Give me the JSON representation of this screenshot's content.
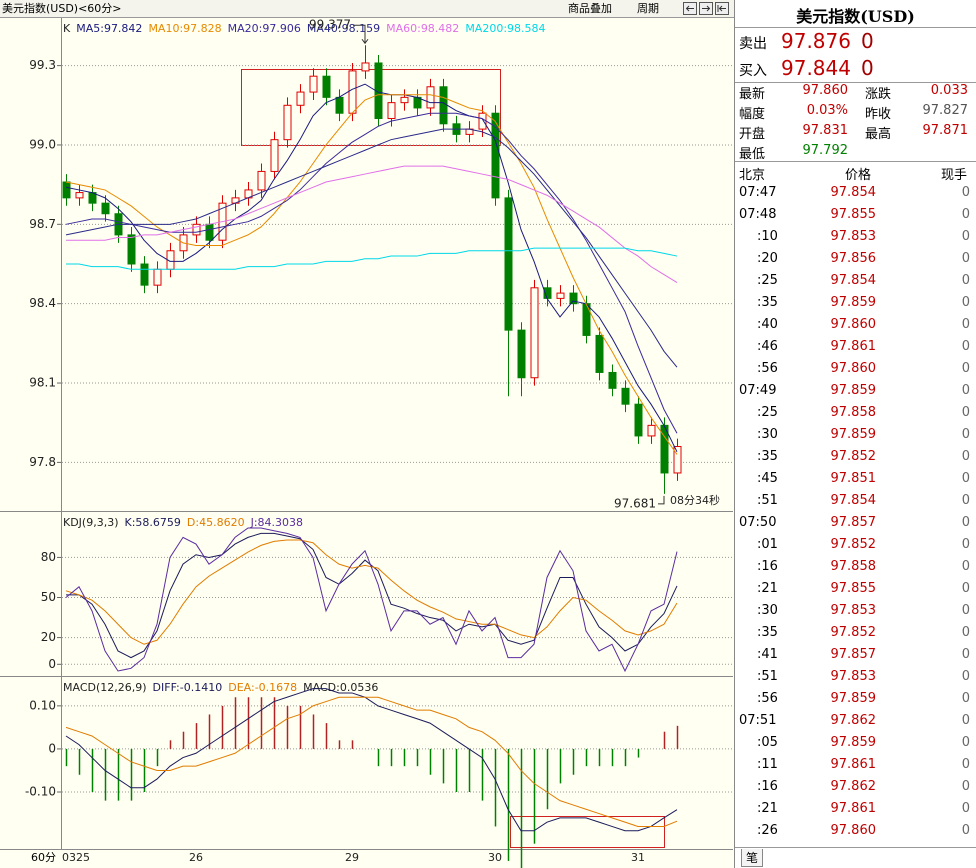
{
  "header": {
    "title": "美元指数(USD)<60分>",
    "overlay_button": "商品叠加",
    "period_button": "周期"
  },
  "period_label": "60分",
  "chart_data": [
    {
      "type": "candlestick",
      "label": "K",
      "categories": [
        "0325",
        null,
        null,
        null,
        null,
        null,
        null,
        null,
        null,
        null,
        "26",
        null,
        null,
        null,
        null,
        null,
        null,
        null,
        null,
        null,
        null,
        null,
        "29",
        null,
        null,
        null,
        null,
        null,
        null,
        null,
        null,
        null,
        null,
        "30",
        null,
        null,
        null,
        null,
        null,
        null,
        null,
        null,
        null,
        null,
        "31",
        null,
        null,
        null
      ],
      "open": [
        98.86,
        98.8,
        98.82,
        98.78,
        98.74,
        98.66,
        98.55,
        98.47,
        98.53,
        98.6,
        98.66,
        98.7,
        98.64,
        98.78,
        98.8,
        98.83,
        98.9,
        99.02,
        99.15,
        99.2,
        99.26,
        99.18,
        99.12,
        99.28,
        99.31,
        99.1,
        99.16,
        99.18,
        99.14,
        99.22,
        99.08,
        99.04,
        99.06,
        99.12,
        98.8,
        98.3,
        98.12,
        98.46,
        98.42,
        98.44,
        98.4,
        98.28,
        98.14,
        98.08,
        98.02,
        97.9,
        97.94,
        97.76
      ],
      "high": [
        98.89,
        98.85,
        98.85,
        98.81,
        98.77,
        98.69,
        98.58,
        98.56,
        98.63,
        98.69,
        98.73,
        98.73,
        98.81,
        98.83,
        98.86,
        98.93,
        99.05,
        99.18,
        99.23,
        99.29,
        99.29,
        99.21,
        99.31,
        99.377,
        99.34,
        99.19,
        99.21,
        99.21,
        99.25,
        99.25,
        99.11,
        99.09,
        99.15,
        99.15,
        98.83,
        98.33,
        98.49,
        98.49,
        98.47,
        98.47,
        98.43,
        98.31,
        98.17,
        98.11,
        98.05,
        97.97,
        97.97,
        97.89
      ],
      "low": [
        98.77,
        98.77,
        98.75,
        98.71,
        98.63,
        98.52,
        98.44,
        98.44,
        98.5,
        98.57,
        98.63,
        98.61,
        98.61,
        98.75,
        98.77,
        98.8,
        98.87,
        98.99,
        99.12,
        99.17,
        99.15,
        99.09,
        99.09,
        99.25,
        99.07,
        99.07,
        99.13,
        99.11,
        99.11,
        99.05,
        99.01,
        99.01,
        99.03,
        98.77,
        98.05,
        98.05,
        98.09,
        98.39,
        98.39,
        98.37,
        98.25,
        98.11,
        98.05,
        97.99,
        97.87,
        97.87,
        97.681,
        97.73
      ],
      "close": [
        98.8,
        98.82,
        98.78,
        98.74,
        98.66,
        98.55,
        98.47,
        98.53,
        98.6,
        98.66,
        98.7,
        98.64,
        98.78,
        98.8,
        98.83,
        98.9,
        99.02,
        99.15,
        99.2,
        99.26,
        99.18,
        99.12,
        99.28,
        99.31,
        99.1,
        99.16,
        99.18,
        99.14,
        99.22,
        99.08,
        99.04,
        99.06,
        99.12,
        98.8,
        98.3,
        98.12,
        98.46,
        98.42,
        98.44,
        98.4,
        98.28,
        98.14,
        98.08,
        98.02,
        97.9,
        97.94,
        97.76,
        97.86
      ],
      "up_color": "#e00000",
      "down_color": "#008000",
      "series": [
        {
          "name": "MA5:97.842",
          "color": "#1a1a80",
          "values": [
            98.84,
            98.83,
            98.82,
            98.8,
            98.76,
            98.71,
            98.64,
            98.59,
            98.56,
            98.56,
            98.59,
            98.63,
            98.68,
            98.72,
            98.75,
            98.79,
            98.87,
            98.94,
            99.02,
            99.11,
            99.16,
            99.18,
            99.21,
            99.23,
            99.2,
            99.19,
            99.19,
            99.18,
            99.16,
            99.16,
            99.13,
            99.11,
            99.1,
            99.02,
            98.86,
            98.68,
            98.56,
            98.42,
            98.35,
            98.41,
            98.4,
            98.35,
            98.27,
            98.18,
            98.09,
            98.02,
            97.94,
            97.84
          ]
        },
        {
          "name": "MA10:97.828",
          "color": "#e88a00",
          "values": [
            98.86,
            98.85,
            98.84,
            98.83,
            98.8,
            98.77,
            98.73,
            98.69,
            98.66,
            98.63,
            98.62,
            98.62,
            98.62,
            98.64,
            98.66,
            98.69,
            98.74,
            98.8,
            98.86,
            98.93,
            99.0,
            99.06,
            99.12,
            99.17,
            99.19,
            99.19,
            99.19,
            99.19,
            99.19,
            99.18,
            99.16,
            99.14,
            99.13,
            99.09,
            99.01,
            98.93,
            98.84,
            98.72,
            98.61,
            98.5,
            98.4,
            98.3,
            98.22,
            98.13,
            98.05,
            97.97,
            97.9,
            97.83
          ]
        },
        {
          "name": "MA20:97.906",
          "color": "#3a2a9a",
          "values": [
            98.7,
            98.71,
            98.72,
            98.72,
            98.71,
            98.7,
            98.69,
            98.68,
            98.67,
            98.67,
            98.67,
            98.68,
            98.69,
            98.7,
            98.71,
            98.73,
            98.76,
            98.79,
            98.83,
            98.88,
            98.93,
            98.97,
            99.01,
            99.04,
            99.07,
            99.09,
            99.1,
            99.11,
            99.12,
            99.12,
            99.12,
            99.11,
            99.1,
            99.07,
            99.02,
            98.96,
            98.91,
            98.85,
            98.79,
            98.72,
            98.64,
            98.55,
            98.46,
            98.37,
            98.24,
            98.12,
            98.0,
            97.91
          ]
        },
        {
          "name": "MA40:98.159",
          "color": "#2a2a8a",
          "values": [
            98.66,
            98.67,
            98.68,
            98.69,
            98.7,
            98.7,
            98.7,
            98.7,
            98.7,
            98.71,
            98.72,
            98.74,
            98.76,
            98.78,
            98.8,
            98.82,
            98.84,
            98.86,
            98.88,
            98.9,
            98.92,
            98.94,
            98.96,
            98.98,
            99.0,
            99.02,
            99.03,
            99.04,
            99.05,
            99.06,
            99.06,
            99.06,
            99.05,
            99.03,
            98.99,
            98.94,
            98.89,
            98.83,
            98.77,
            98.71,
            98.65,
            98.58,
            98.51,
            98.44,
            98.37,
            98.3,
            98.22,
            98.16
          ]
        },
        {
          "name": "MA60:98.482",
          "color": "#e070e8",
          "values": [
            98.64,
            98.64,
            98.64,
            98.64,
            98.65,
            98.65,
            98.66,
            98.66,
            98.67,
            98.68,
            98.69,
            98.7,
            98.71,
            98.72,
            98.74,
            98.76,
            98.78,
            98.8,
            98.82,
            98.84,
            98.86,
            98.87,
            98.88,
            98.89,
            98.9,
            98.91,
            98.92,
            98.92,
            98.92,
            98.92,
            98.91,
            98.9,
            98.89,
            98.88,
            98.87,
            98.85,
            98.83,
            98.81,
            98.78,
            98.75,
            98.72,
            98.69,
            98.65,
            98.61,
            98.58,
            98.54,
            98.51,
            98.48
          ]
        },
        {
          "name": "MA200:98.584",
          "color": "#00d8e8",
          "values": [
            98.55,
            98.55,
            98.54,
            98.54,
            98.54,
            98.53,
            98.53,
            98.53,
            98.53,
            98.53,
            98.53,
            98.53,
            98.53,
            98.53,
            98.54,
            98.54,
            98.54,
            98.55,
            98.55,
            98.55,
            98.56,
            98.56,
            98.56,
            98.57,
            98.57,
            98.58,
            98.58,
            98.58,
            98.59,
            98.59,
            98.59,
            98.6,
            98.6,
            98.6,
            98.6,
            98.6,
            98.61,
            98.61,
            98.61,
            98.61,
            98.61,
            98.61,
            98.61,
            98.61,
            98.6,
            98.6,
            98.59,
            98.58
          ]
        }
      ],
      "ylim": [
        97.62,
        99.48
      ],
      "yticks": [
        99.3,
        {
          "value": 99,
          "label": "99.0"
        },
        98.7,
        98.4,
        98.1,
        97.8
      ],
      "grid": true,
      "high_label": 99.377,
      "low_label": 97.681,
      "countdown": "08分34秒"
    },
    {
      "type": "line",
      "title": "KDJ(9,3,3)",
      "series": [
        {
          "name": "K:58.6759",
          "color": "#1c1c5c",
          "values": [
            52,
            52,
            45,
            30,
            10,
            5,
            10,
            25,
            55,
            75,
            82,
            80,
            82,
            90,
            95,
            98,
            98,
            96,
            94,
            86,
            65,
            60,
            68,
            78,
            70,
            45,
            42,
            38,
            35,
            33,
            25,
            30,
            28,
            30,
            18,
            15,
            18,
            42,
            65,
            65,
            45,
            28,
            20,
            10,
            15,
            28,
            38,
            58.6759
          ]
        },
        {
          "name": "D:45.8620",
          "color": "#e07c00",
          "values": [
            55,
            52,
            48,
            40,
            30,
            20,
            15,
            18,
            30,
            45,
            58,
            66,
            72,
            78,
            84,
            89,
            92,
            93,
            93,
            91,
            82,
            75,
            72,
            74,
            72,
            63,
            55,
            48,
            43,
            39,
            34,
            32,
            30,
            30,
            26,
            22,
            20,
            28,
            40,
            50,
            48,
            40,
            33,
            25,
            22,
            25,
            30,
            45.862
          ]
        },
        {
          "name": "J:84.3038",
          "color": "#5a2ca0",
          "values": [
            50,
            58,
            40,
            10,
            -5,
            -3,
            5,
            30,
            80,
            95,
            90,
            75,
            82,
            95,
            102,
            102,
            100,
            98,
            95,
            80,
            40,
            60,
            75,
            85,
            60,
            25,
            40,
            40,
            30,
            35,
            15,
            40,
            25,
            35,
            5,
            5,
            15,
            65,
            85,
            70,
            25,
            10,
            15,
            -5,
            15,
            40,
            45,
            84.3038
          ]
        }
      ],
      "ylim": [
        -8,
        114
      ],
      "yticks": [
        80,
        50,
        20,
        0
      ],
      "grid": true
    },
    {
      "type": "macd",
      "title": "MACD(12,26,9)",
      "series": [
        {
          "name": "DIFF:-0.1410",
          "color": "#1c1c5c",
          "values": [
            0.03,
            0.01,
            -0.02,
            -0.05,
            -0.07,
            -0.09,
            -0.09,
            -0.07,
            -0.04,
            -0.02,
            -0.01,
            0.01,
            0.03,
            0.05,
            0.07,
            0.09,
            0.11,
            0.12,
            0.13,
            0.14,
            0.14,
            0.13,
            0.13,
            0.12,
            0.1,
            0.09,
            0.08,
            0.07,
            0.06,
            0.04,
            0.02,
            0.0,
            -0.02,
            -0.07,
            -0.14,
            -0.19,
            -0.19,
            -0.17,
            -0.16,
            -0.16,
            -0.16,
            -0.17,
            -0.18,
            -0.19,
            -0.19,
            -0.18,
            -0.16,
            -0.141
          ]
        },
        {
          "name": "DEA:-0.1678",
          "color": "#e07c00",
          "values": [
            0.05,
            0.04,
            0.03,
            0.01,
            -0.01,
            -0.03,
            -0.04,
            -0.05,
            -0.05,
            -0.04,
            -0.04,
            -0.03,
            -0.02,
            -0.01,
            0.01,
            0.03,
            0.05,
            0.07,
            0.08,
            0.1,
            0.11,
            0.12,
            0.12,
            0.12,
            0.12,
            0.11,
            0.1,
            0.09,
            0.09,
            0.08,
            0.07,
            0.05,
            0.04,
            0.02,
            -0.01,
            -0.05,
            -0.08,
            -0.1,
            -0.12,
            -0.13,
            -0.14,
            -0.15,
            -0.16,
            -0.17,
            -0.18,
            -0.18,
            -0.18,
            -0.1678
          ]
        }
      ],
      "histogram": {
        "name": "MACD:0.0536",
        "up_color": "#b22222",
        "down_color": "#008000",
        "values": [
          -0.04,
          -0.06,
          -0.1,
          -0.12,
          -0.12,
          -0.12,
          -0.1,
          -0.04,
          0.02,
          0.04,
          0.06,
          0.08,
          0.1,
          0.12,
          0.12,
          0.12,
          0.12,
          0.1,
          0.1,
          0.08,
          0.06,
          0.02,
          0.02,
          0.0,
          -0.04,
          -0.04,
          -0.04,
          -0.04,
          -0.06,
          -0.08,
          -0.1,
          -0.1,
          -0.12,
          -0.18,
          -0.26,
          -0.28,
          -0.22,
          -0.14,
          -0.08,
          -0.06,
          -0.04,
          -0.04,
          -0.04,
          -0.04,
          -0.02,
          0.0,
          0.04,
          0.0536
        ]
      },
      "ylim": [
        -0.23,
        0.167
      ],
      "yticks": [
        {
          "value": 0.1,
          "label": "0.10"
        },
        0,
        {
          "value": -0.1,
          "label": "-0.10"
        }
      ],
      "grid": true
    }
  ],
  "side_panel": {
    "title": "美元指数(USD)",
    "quotes": [
      [
        "卖出",
        "97.876",
        "0"
      ],
      [
        "买入",
        "97.844",
        "0"
      ]
    ],
    "stats": [
      [
        "最新",
        "97.860",
        "涨跌",
        "0.033"
      ],
      [
        "幅度",
        "0.03%",
        "昨收",
        "97.827"
      ],
      [
        "开盘",
        "97.831",
        "最高",
        "97.871"
      ],
      [
        "最低",
        "97.792"
      ]
    ],
    "ticks_header": [
      "北京",
      "价格",
      "现手"
    ],
    "ticks": [
      [
        "07:47",
        "97.854",
        "0"
      ],
      [
        "07:48",
        "97.855",
        "0"
      ],
      [
        ":10",
        "97.853",
        "0"
      ],
      [
        ":20",
        "97.856",
        "0"
      ],
      [
        ":25",
        "97.854",
        "0"
      ],
      [
        ":35",
        "97.859",
        "0"
      ],
      [
        ":40",
        "97.860",
        "0"
      ],
      [
        ":46",
        "97.861",
        "0"
      ],
      [
        ":56",
        "97.860",
        "0"
      ],
      [
        "07:49",
        "97.859",
        "0"
      ],
      [
        ":25",
        "97.858",
        "0"
      ],
      [
        ":30",
        "97.859",
        "0"
      ],
      [
        ":35",
        "97.852",
        "0"
      ],
      [
        ":45",
        "97.851",
        "0"
      ],
      [
        ":51",
        "97.854",
        "0"
      ],
      [
        "07:50",
        "97.857",
        "0"
      ],
      [
        ":01",
        "97.852",
        "0"
      ],
      [
        ":16",
        "97.858",
        "0"
      ],
      [
        ":21",
        "97.855",
        "0"
      ],
      [
        ":30",
        "97.853",
        "0"
      ],
      [
        ":35",
        "97.852",
        "0"
      ],
      [
        ":41",
        "97.857",
        "0"
      ],
      [
        ":51",
        "97.853",
        "0"
      ],
      [
        ":56",
        "97.859",
        "0"
      ],
      [
        "07:51",
        "97.862",
        "0"
      ],
      [
        ":05",
        "97.859",
        "0"
      ],
      [
        ":11",
        "97.861",
        "0"
      ],
      [
        ":16",
        "97.862",
        "0"
      ],
      [
        ":21",
        "97.861",
        "0"
      ],
      [
        ":26",
        "97.860",
        "0"
      ]
    ],
    "tab": "笔"
  }
}
